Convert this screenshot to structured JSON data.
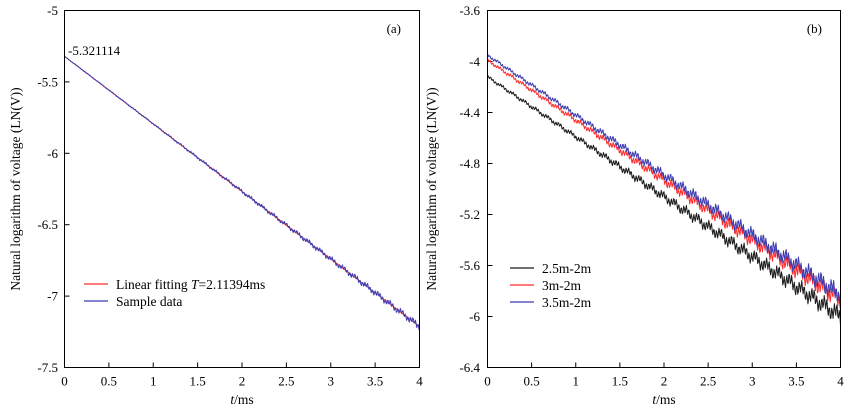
{
  "chart_data": [
    {
      "id": "a",
      "type": "line",
      "panel_label": "(a)",
      "xlabel_italic": "t",
      "xlabel_unit": "/ms",
      "ylabel": "Natural logarithm of voltage (LN(V))",
      "xlim": [
        0,
        4
      ],
      "ylim": [
        -7.5,
        -5
      ],
      "xticks": [
        0,
        0.5,
        1,
        1.5,
        2,
        2.5,
        3,
        3.5,
        4
      ],
      "yticks": [
        -5,
        -5.5,
        -6,
        -6.5,
        -7,
        -7.5
      ],
      "annotation": "-5.321114",
      "legend_position": "bottom-left",
      "series": [
        {
          "name": "Linear fitting T=2.11394ms",
          "legend_prefix": "Linear fitting ",
          "legend_italic": "T",
          "legend_suffix": "=2.11394ms",
          "color": "#ff2b2b",
          "x": [
            0,
            4
          ],
          "y": [
            -5.321,
            -7.213
          ]
        },
        {
          "name": "Sample data",
          "color": "#3b3bb0",
          "x": [
            0,
            0.5,
            1,
            1.5,
            2,
            2.5,
            3,
            3.5,
            4
          ],
          "y": [
            -5.321,
            -5.557,
            -5.794,
            -6.03,
            -6.267,
            -6.503,
            -6.74,
            -6.976,
            -7.213
          ],
          "noise_amplitude": [
            0.002,
            0.004,
            0.006,
            0.01,
            0.014,
            0.018,
            0.022,
            0.026,
            0.03
          ]
        }
      ]
    },
    {
      "id": "b",
      "type": "line",
      "panel_label": "(b)",
      "xlabel_italic": "t",
      "xlabel_unit": "/ms",
      "ylabel": "Natural logarithm of voltage (LN(V))",
      "xlim": [
        0,
        4
      ],
      "ylim": [
        -6.4,
        -3.6
      ],
      "xticks": [
        0,
        0.5,
        1,
        1.5,
        2,
        2.5,
        3,
        3.5,
        4
      ],
      "yticks": [
        -3.6,
        -4,
        -4.4,
        -4.8,
        -5.2,
        -5.6,
        -6,
        -6.4
      ],
      "ytick_labels": [
        "-3.6",
        "-4",
        "-4.4",
        "-4.8",
        "-5.2",
        "-5.6",
        "-6",
        "-6.4"
      ],
      "legend_position": "bottom-left",
      "series": [
        {
          "name": "2.5m-2m",
          "color": "#1a1a1a",
          "x": [
            0,
            0.5,
            1,
            1.5,
            2,
            2.5,
            3,
            3.5,
            4
          ],
          "y": [
            -4.12,
            -4.355,
            -4.59,
            -4.825,
            -5.06,
            -5.295,
            -5.53,
            -5.765,
            -6.0
          ],
          "noise_amplitude": [
            0.015,
            0.02,
            0.025,
            0.035,
            0.045,
            0.055,
            0.065,
            0.075,
            0.085
          ]
        },
        {
          "name": "3m-2m",
          "color": "#ff2b2b",
          "x": [
            0,
            0.5,
            1,
            1.5,
            2,
            2.5,
            3,
            3.5,
            4
          ],
          "y": [
            -3.99,
            -4.225,
            -4.46,
            -4.695,
            -4.93,
            -5.165,
            -5.4,
            -5.635,
            -5.87
          ],
          "noise_amplitude": [
            0.015,
            0.02,
            0.025,
            0.035,
            0.045,
            0.055,
            0.065,
            0.075,
            0.085
          ]
        },
        {
          "name": "3.5m-2m",
          "color": "#3b3bb0",
          "x": [
            0,
            0.5,
            1,
            1.5,
            2,
            2.5,
            3,
            3.5,
            4
          ],
          "y": [
            -3.95,
            -4.185,
            -4.42,
            -4.655,
            -4.89,
            -5.125,
            -5.36,
            -5.595,
            -5.83
          ],
          "noise_amplitude": [
            0.015,
            0.02,
            0.025,
            0.035,
            0.045,
            0.055,
            0.065,
            0.075,
            0.085
          ]
        }
      ]
    }
  ]
}
